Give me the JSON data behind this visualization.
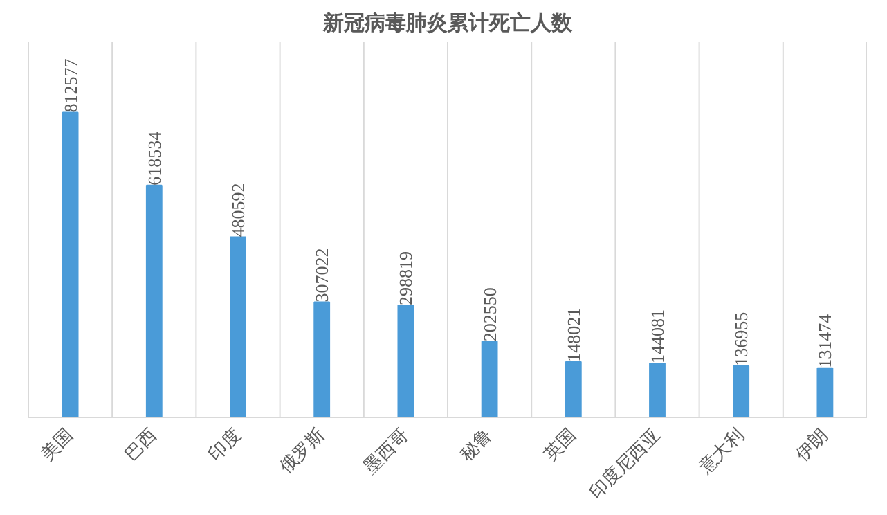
{
  "chart_data": {
    "type": "bar",
    "title": "新冠病毒肺炎累计死亡人数",
    "categories": [
      "美国",
      "巴西",
      "印度",
      "俄罗斯",
      "墨西哥",
      "秘鲁",
      "英国",
      "印度尼西亚",
      "意大利",
      "伊朗"
    ],
    "values": [
      812577,
      618534,
      480592,
      307022,
      298819,
      202550,
      148021,
      144081,
      136955,
      131474
    ],
    "color": "#4a9bd8",
    "ylim": [
      0,
      1000000
    ],
    "grid": "x",
    "data_labels": true,
    "tick_labels": "x"
  }
}
